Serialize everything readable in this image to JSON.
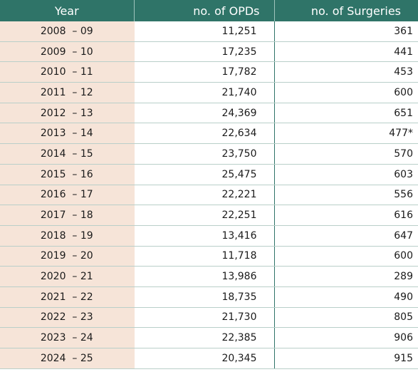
{
  "table": {
    "headers": [
      "Year",
      "no. of OPDs",
      "no. of Surgeries"
    ],
    "rows": [
      [
        "2008  – 09",
        "11,251",
        "361"
      ],
      [
        "2009  – 10",
        "17,235",
        "441"
      ],
      [
        "2010  – 11",
        "17,782",
        "453"
      ],
      [
        "2011  – 12",
        "21,740",
        "600"
      ],
      [
        "2012  – 13",
        "24,369",
        "651"
      ],
      [
        "2013  – 14",
        "22,634",
        "477*"
      ],
      [
        "2014  – 15",
        "23,750",
        "570"
      ],
      [
        "2015  – 16",
        "25,475",
        "603"
      ],
      [
        "2016  – 17",
        "22,221",
        "556"
      ],
      [
        "2017  – 18",
        "22,251",
        "616"
      ],
      [
        "2018  – 19",
        "13,416",
        "647"
      ],
      [
        "2019  – 20",
        "11,718",
        "600"
      ],
      [
        "2020  – 21",
        "13,986",
        "289"
      ],
      [
        "2021  – 22",
        "18,735",
        "490"
      ],
      [
        "2022  – 23",
        "21,730",
        "805"
      ],
      [
        "2023  – 24",
        "22,385",
        "906"
      ],
      [
        "2024  – 25",
        "20,345",
        "915"
      ]
    ]
  },
  "colors": {
    "header_bg": "#2f7468",
    "year_cell_bg": "#f6e4d8"
  }
}
